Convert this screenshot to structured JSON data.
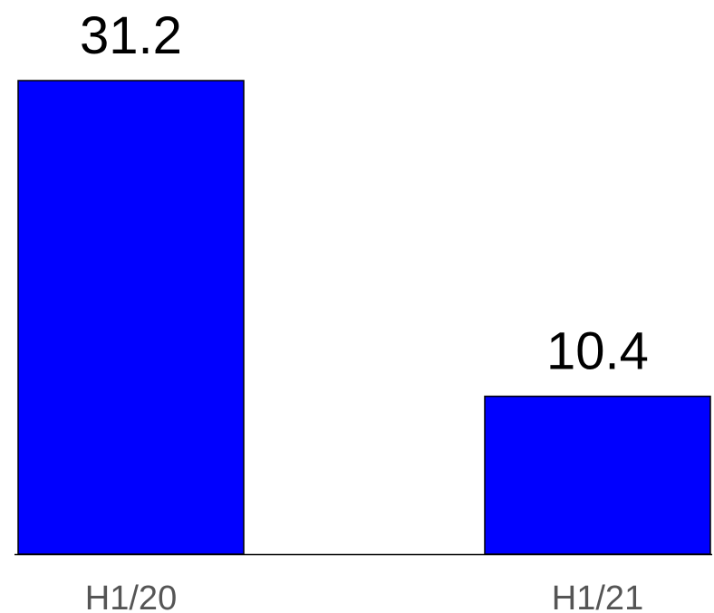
{
  "chart_data": {
    "type": "bar",
    "categories": [
      "H1/20",
      "H1/21"
    ],
    "values": [
      31.2,
      10.4
    ],
    "data_labels": [
      "31.2",
      "10.4"
    ],
    "title": "",
    "xlabel": "",
    "ylabel": "",
    "ylim": [
      0,
      31.2
    ],
    "grid": false,
    "legend": "none",
    "colors": {
      "bar": "#0000ff",
      "bar_border": "#000000",
      "data_label": "#000000",
      "tick_label": "#555555",
      "baseline": "#000000"
    }
  }
}
